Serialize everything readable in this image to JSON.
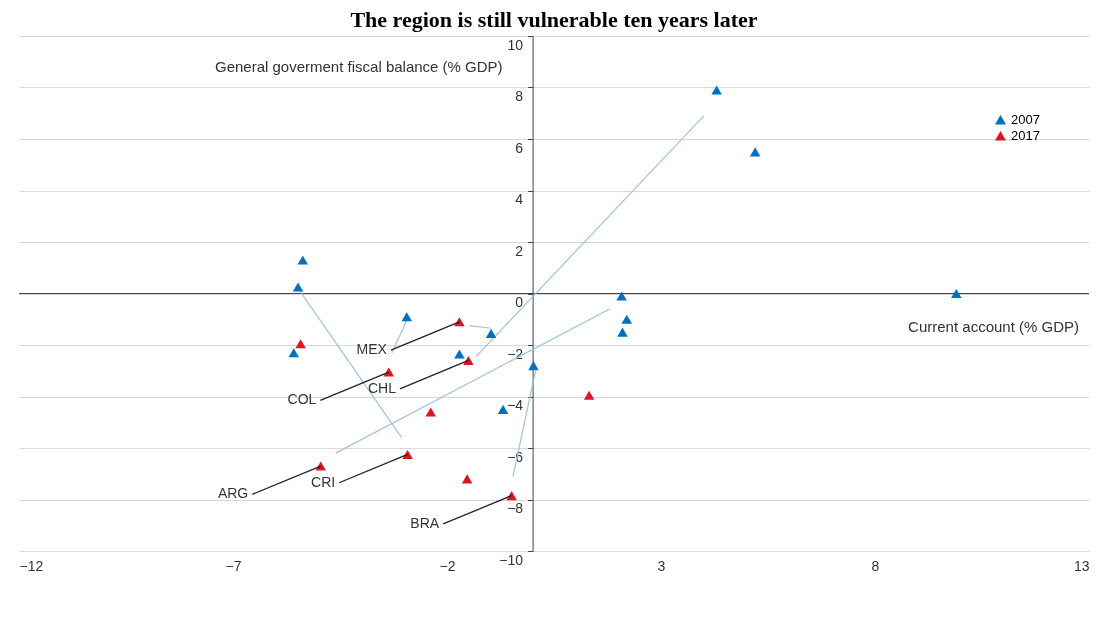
{
  "chart_data": {
    "type": "scatter",
    "title": "The region is still vulnerable ten years later",
    "xlabel": "Current account (% GDP)",
    "ylabel": "General goverment fiscal balance (% GDP)",
    "xlim": [
      -12,
      13
    ],
    "xticks": [
      -12,
      -7,
      -2,
      3,
      8,
      13
    ],
    "ylim": [
      -10,
      10
    ],
    "yticks": [
      -10,
      -8,
      -6,
      -4,
      -2,
      0,
      2,
      4,
      6,
      8,
      10
    ],
    "grid": "y",
    "legend": "right",
    "marker": "triangle",
    "series": [
      {
        "name": "2007",
        "color": "#0070c0",
        "x": [
          -5.37,
          -5.48,
          -5.58,
          -2.94,
          -0.97,
          -1.71,
          -0.69,
          0.02,
          2.08,
          2.2,
          2.1,
          4.3,
          5.2,
          9.9
        ],
        "values": [
          1.3,
          0.25,
          -2.3,
          -0.9,
          -1.55,
          -2.35,
          -4.5,
          -2.8,
          -0.1,
          -1.0,
          -1.5,
          7.9,
          5.5,
          0.0
        ]
      },
      {
        "name": "2017",
        "color": "#e0141e",
        "x": [
          -5.42,
          -3.36,
          -1.71,
          -1.5,
          -2.38,
          1.32,
          -2.92,
          -4.95,
          -1.53,
          -0.49
        ],
        "values": [
          -1.95,
          -3.05,
          -1.1,
          -2.6,
          -4.6,
          -3.95,
          -6.25,
          -6.7,
          -7.2,
          -7.85
        ]
      },
      {
        "type": "line",
        "marker": "none",
        "color": "#9dc3e6",
        "x": [
          -5.48,
          -3.06
        ],
        "values": [
          0.2,
          -5.6
        ]
      },
      {
        "type": "line",
        "marker": "none",
        "color": "#9dc3e6",
        "x": [
          1.8,
          -4.6
        ],
        "values": [
          -0.6,
          -6.2
        ]
      },
      {
        "type": "line",
        "marker": "none",
        "color": "#9dc3e6",
        "x": [
          4.0,
          -1.32
        ],
        "values": [
          6.9,
          -2.45
        ]
      },
      {
        "type": "line",
        "marker": "none",
        "color": "#9dc3e6",
        "x": [
          0.07,
          -0.46
        ],
        "values": [
          -3.0,
          -7.1
        ]
      },
      {
        "type": "line",
        "marker": "none",
        "color": "#9dc3e6",
        "x": [
          -2.94,
          -3.29
        ],
        "values": [
          -1.05,
          -2.3
        ]
      },
      {
        "type": "line",
        "marker": "none",
        "color": "#9dc3e6",
        "x": [
          -0.97,
          -1.48
        ],
        "values": [
          -1.35,
          -1.25
        ]
      }
    ],
    "annotations": [
      {
        "text": "MEX",
        "x": -1.71,
        "y": -1.1
      },
      {
        "text": "CHL",
        "x": -1.5,
        "y": -2.6
      },
      {
        "text": "COL",
        "x": -3.36,
        "y": -3.05
      },
      {
        "text": "ARG",
        "x": -4.95,
        "y": -6.7
      },
      {
        "text": "CRI",
        "x": -2.92,
        "y": -6.25
      },
      {
        "text": "BRA",
        "x": -0.49,
        "y": -7.85
      }
    ]
  }
}
